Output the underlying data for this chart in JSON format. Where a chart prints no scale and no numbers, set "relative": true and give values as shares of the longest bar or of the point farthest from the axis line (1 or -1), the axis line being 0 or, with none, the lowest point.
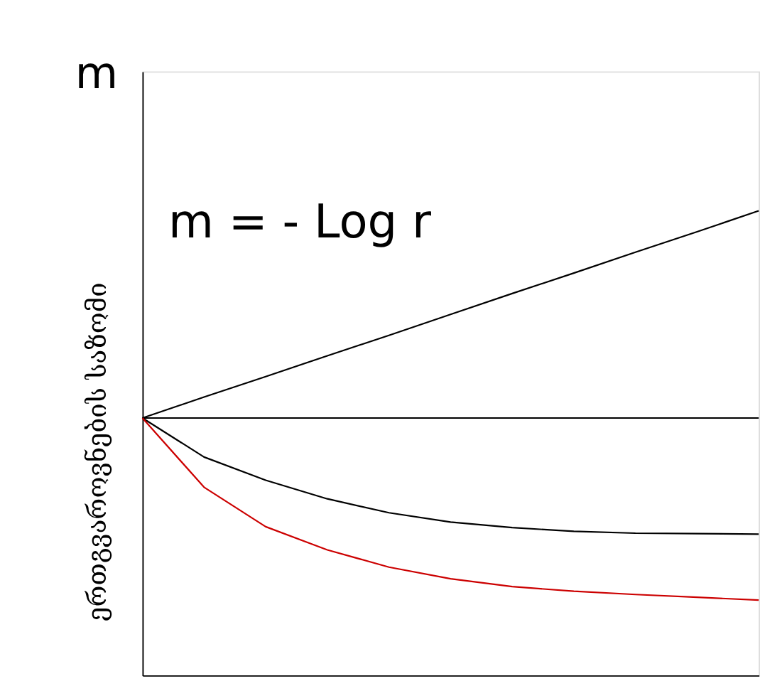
{
  "chart_data": {
    "type": "line",
    "relative": true,
    "ylabel": "ერთგვაროვნების საზომი",
    "annotations": [
      "m",
      "m = - Log r"
    ],
    "categories": [
      null,
      null,
      null,
      null,
      null,
      null,
      null,
      null,
      null,
      null,
      null
    ],
    "tick_labels": false,
    "marker": "none",
    "line_style": "solid",
    "series": [
      {
        "color": "#000000",
        "values": [
          0.554,
          0.599,
          0.643,
          0.688,
          0.732,
          0.777,
          0.822,
          0.866,
          0.911,
          0.955,
          1
        ]
      },
      {
        "color": "#000000",
        "values": [
          0.554,
          0.554,
          0.554,
          0.554,
          0.554,
          0.554,
          0.554,
          0.554,
          0.554,
          0.554,
          0.554
        ]
      },
      {
        "color": "#000000",
        "values": [
          0.554,
          0.47,
          0.42,
          0.38,
          0.35,
          0.33,
          0.318,
          0.31,
          0.306,
          0.305,
          0.304
        ]
      },
      {
        "color": "#cc0000",
        "values": [
          0.554,
          0.405,
          0.32,
          0.27,
          0.233,
          0.208,
          0.191,
          0.181,
          0.174,
          0.168,
          0.162
        ]
      }
    ]
  }
}
